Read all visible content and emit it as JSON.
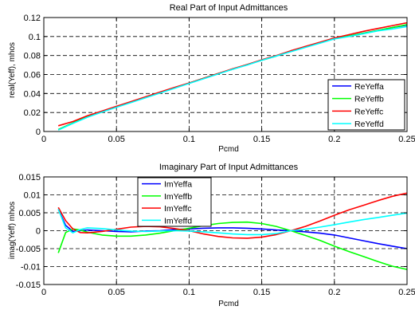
{
  "chart_data": [
    {
      "type": "line",
      "title": "Real Part of Input Admittances",
      "xlabel": "Pcmd",
      "ylabel": "real(Yeff), mhos",
      "xlim": [
        0,
        0.25
      ],
      "ylim": [
        0,
        0.12
      ],
      "xticks": [
        "0",
        "0.05",
        "0.1",
        "0.15",
        "0.2",
        "0.25"
      ],
      "yticks": [
        "0",
        "0.02",
        "0.04",
        "0.06",
        "0.08",
        "0.1",
        "0.12"
      ],
      "grid": true,
      "legend_position": "bottom-right",
      "x": [
        0.01,
        0.02,
        0.03,
        0.04,
        0.05,
        0.06,
        0.07,
        0.08,
        0.09,
        0.1,
        0.11,
        0.12,
        0.13,
        0.14,
        0.15,
        0.16,
        0.17,
        0.18,
        0.19,
        0.2,
        0.21,
        0.22,
        0.23,
        0.24,
        0.25
      ],
      "series": [
        {
          "name": "ReYeffa",
          "color": "#0000ff",
          "values": [
            0.002,
            0.009,
            0.0155,
            0.021,
            0.026,
            0.031,
            0.036,
            0.041,
            0.046,
            0.051,
            0.056,
            0.061,
            0.0655,
            0.0705,
            0.075,
            0.0795,
            0.0845,
            0.089,
            0.0935,
            0.098,
            0.1005,
            0.1035,
            0.1065,
            0.1095,
            0.112
          ]
        },
        {
          "name": "ReYeffb",
          "color": "#00ff00",
          "values": [
            0.002,
            0.009,
            0.0155,
            0.021,
            0.026,
            0.031,
            0.036,
            0.041,
            0.046,
            0.051,
            0.056,
            0.061,
            0.0655,
            0.0705,
            0.075,
            0.0795,
            0.0845,
            0.089,
            0.0935,
            0.098,
            0.1005,
            0.1035,
            0.1065,
            0.1095,
            0.1125
          ]
        },
        {
          "name": "ReYeffc",
          "color": "#ff0000",
          "values": [
            0.006,
            0.0105,
            0.0165,
            0.0215,
            0.0265,
            0.0315,
            0.0365,
            0.0415,
            0.0465,
            0.051,
            0.056,
            0.061,
            0.066,
            0.0705,
            0.0755,
            0.08,
            0.085,
            0.0895,
            0.094,
            0.0985,
            0.102,
            0.1055,
            0.1085,
            0.1115,
            0.1145
          ]
        },
        {
          "name": "ReYeffd",
          "color": "#00ffff",
          "values": [
            0.0015,
            0.0085,
            0.015,
            0.0205,
            0.0255,
            0.0305,
            0.0355,
            0.0405,
            0.0455,
            0.0505,
            0.0555,
            0.0605,
            0.0655,
            0.07,
            0.075,
            0.0795,
            0.084,
            0.0885,
            0.093,
            0.0975,
            0.1,
            0.103,
            0.106,
            0.108,
            0.1105
          ]
        }
      ]
    },
    {
      "type": "line",
      "title": "Imaginary Part of Input Admittances",
      "xlabel": "Pcmd",
      "ylabel": "imag(Yeff) mhos",
      "xlim": [
        0,
        0.25
      ],
      "ylim": [
        -0.015,
        0.015
      ],
      "xticks": [
        "0",
        "0.05",
        "0.1",
        "0.15",
        "0.2",
        "0.25"
      ],
      "yticks": [
        "-0.015",
        "-0.01",
        "-0.005",
        "0",
        "0.005",
        "0.01",
        "0.015"
      ],
      "grid": true,
      "legend_position": "top-center",
      "x": [
        0.01,
        0.015,
        0.02,
        0.025,
        0.03,
        0.04,
        0.05,
        0.06,
        0.07,
        0.08,
        0.09,
        0.1,
        0.11,
        0.12,
        0.13,
        0.14,
        0.15,
        0.16,
        0.17,
        0.18,
        0.19,
        0.2,
        0.21,
        0.22,
        0.23,
        0.24,
        0.25
      ],
      "series": [
        {
          "name": "ImYeffa",
          "color": "#0000ff",
          "values": [
            0.006,
            0.0015,
            -0.0002,
            0.0,
            0.0002,
            0.0,
            -0.0002,
            -0.0003,
            -0.0001,
            0.0,
            0.0003,
            0.0005,
            0.0007,
            0.0008,
            0.0008,
            0.0007,
            0.0005,
            0.0002,
            0.0,
            -0.0003,
            -0.0007,
            -0.0012,
            -0.002,
            -0.0028,
            -0.0036,
            -0.0043,
            -0.005
          ]
        },
        {
          "name": "ImYeffb",
          "color": "#00ff00",
          "values": [
            -0.0062,
            -0.0005,
            0.0005,
            0.0002,
            -0.0004,
            -0.0012,
            -0.0015,
            -0.0015,
            -0.0012,
            -0.0007,
            0.0,
            0.0007,
            0.0014,
            0.002,
            0.0023,
            0.0024,
            0.002,
            0.0012,
            0.0,
            -0.0013,
            -0.0027,
            -0.0043,
            -0.0058,
            -0.0072,
            -0.0086,
            -0.0099,
            -0.0108
          ]
        },
        {
          "name": "ImYeffc",
          "color": "#ff0000",
          "values": [
            0.0065,
            0.0028,
            0.0005,
            -0.0005,
            -0.0006,
            -0.0002,
            0.0004,
            0.001,
            0.0012,
            0.0011,
            0.0006,
            0.0,
            -0.0009,
            -0.0016,
            -0.002,
            -0.0021,
            -0.0018,
            -0.0011,
            0.0,
            0.0012,
            0.0027,
            0.0043,
            0.0058,
            0.0071,
            0.0084,
            0.0096,
            0.0105
          ]
        },
        {
          "name": "ImYeffd",
          "color": "#00ffff",
          "values": [
            0.006,
            0.0008,
            -0.0006,
            0.0003,
            0.0008,
            0.0006,
            0.0002,
            -0.0001,
            -0.0002,
            -0.0001,
            0.0,
            -0.0001,
            -0.0003,
            -0.0006,
            -0.0009,
            -0.0011,
            -0.0011,
            -0.0008,
            0.0,
            0.0004,
            0.001,
            0.0017,
            0.0024,
            0.0031,
            0.0037,
            0.0043,
            0.0049
          ]
        }
      ]
    }
  ]
}
